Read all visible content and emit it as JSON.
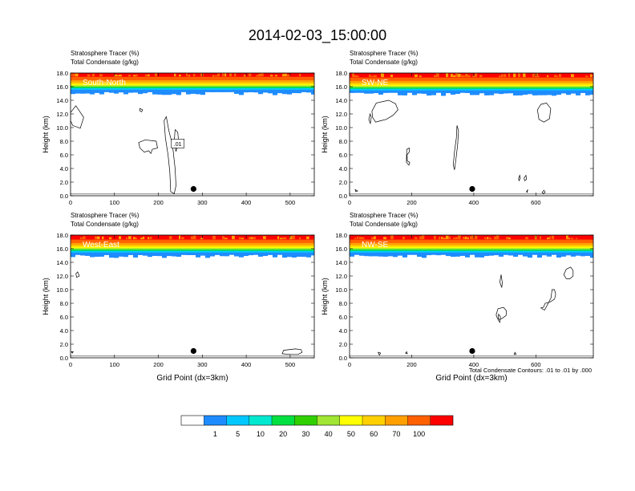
{
  "title": "2014-02-03_15:00:00",
  "panel_text": {
    "var1": "Stratosphere Tracer   (%)",
    "var2": "Total Condensate   (g/kg)"
  },
  "contour_note": "Total Condensate Contours: .01 to .01 by .000",
  "colors": [
    "#ffffff",
    "#1e8cff",
    "#00c8ff",
    "#00e8d0",
    "#00e040",
    "#30d000",
    "#a0e632",
    "#ffff00",
    "#ffd000",
    "#ffa000",
    "#ff6000",
    "#ff0000"
  ],
  "chart_data": [
    {
      "type": "heatmap",
      "label": "South-North",
      "ylabel": "Height (km)",
      "xlabel": "",
      "xlim": [
        0,
        555
      ],
      "ylim": [
        0,
        18
      ],
      "xticks": [
        0,
        100,
        200,
        300,
        400,
        500
      ],
      "yticks": [
        0.0,
        2.0,
        4.0,
        6.0,
        8.0,
        10.0,
        12.0,
        14.0,
        16.0,
        18.0
      ],
      "tropopause_km": 15.8,
      "marker": {
        "x": 280,
        "y": 1.0
      },
      "contour_label": ".01"
    },
    {
      "type": "heatmap",
      "label": "SW-NE",
      "ylabel": "Height (km)",
      "xlabel": "",
      "xlim": [
        0,
        785
      ],
      "ylim": [
        0,
        18
      ],
      "xticks": [
        0,
        200,
        400,
        600
      ],
      "yticks": [
        0.0,
        2.0,
        4.0,
        6.0,
        8.0,
        10.0,
        12.0,
        14.0,
        16.0,
        18.0
      ],
      "tropopause_km": 15.7,
      "marker": {
        "x": 395,
        "y": 1.0
      }
    },
    {
      "type": "heatmap",
      "label": "West-East",
      "ylabel": "Height (km)",
      "xlabel": "Grid Point (dx=3km)",
      "xlim": [
        0,
        555
      ],
      "ylim": [
        0,
        18
      ],
      "xticks": [
        0,
        100,
        200,
        300,
        400,
        500
      ],
      "yticks": [
        0.0,
        2.0,
        4.0,
        6.0,
        8.0,
        10.0,
        12.0,
        14.0,
        16.0,
        18.0
      ],
      "tropopause_km": 15.7,
      "marker": {
        "x": 280,
        "y": 1.0
      }
    },
    {
      "type": "heatmap",
      "label": "NW-SE",
      "ylabel": "Height (km)",
      "xlabel": "Grid Point (dx=3km)",
      "xlim": [
        0,
        785
      ],
      "ylim": [
        0,
        18
      ],
      "xticks": [
        0,
        200,
        400,
        600
      ],
      "yticks": [
        0.0,
        2.0,
        4.0,
        6.0,
        8.0,
        10.0,
        12.0,
        14.0,
        16.0,
        18.0
      ],
      "tropopause_km": 15.7,
      "marker": {
        "x": 395,
        "y": 1.0
      }
    }
  ],
  "colorbar": {
    "labels": [
      "1",
      "5",
      "10",
      "20",
      "30",
      "40",
      "50",
      "60",
      "70",
      "100"
    ],
    "colors": [
      "#ffffff",
      "#1e8cff",
      "#00c8ff",
      "#00e8d0",
      "#00e040",
      "#30d000",
      "#a0e632",
      "#ffff00",
      "#ffd000",
      "#ffa000",
      "#ff6000",
      "#ff0000"
    ]
  }
}
